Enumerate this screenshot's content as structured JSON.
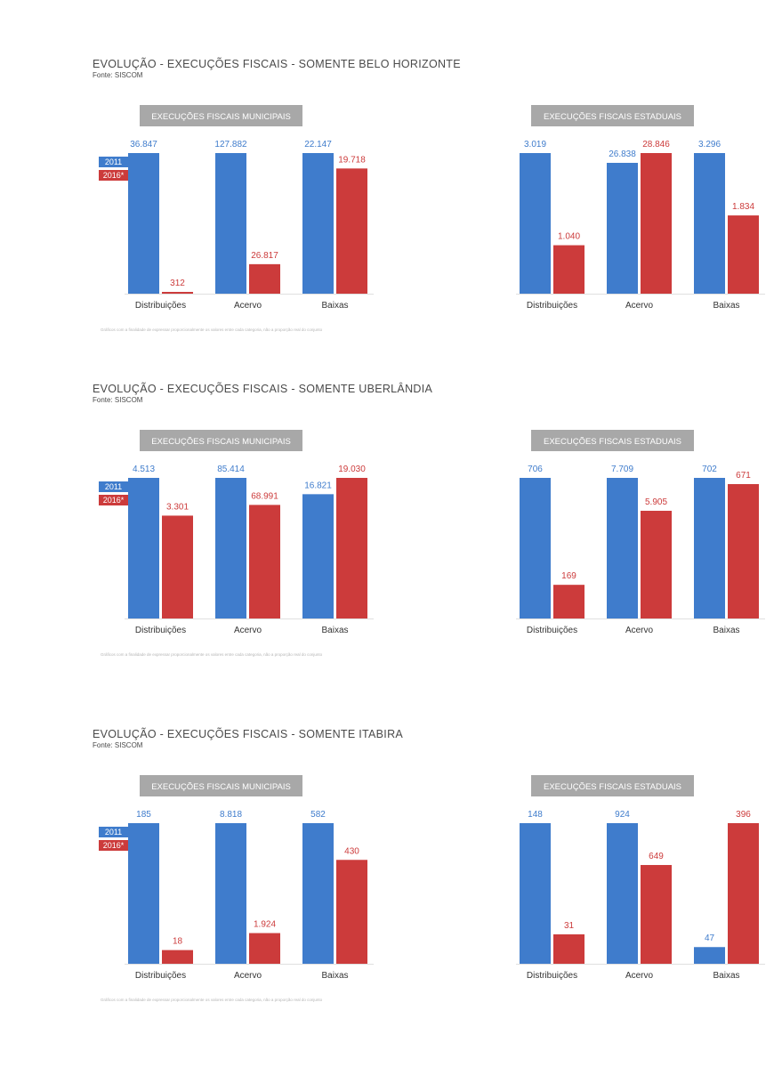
{
  "colors": {
    "y2011": "#3f7ccc",
    "y2016": "#cc3b3b",
    "header_bg": "#a8a8a8",
    "baseline": "#e0e0e0"
  },
  "legend": {
    "y2011": "2011",
    "y2016": "2016*"
  },
  "sections": [
    {
      "title": "EVOLUÇÃO - EXECUÇÕES FISCAIS - SOMENTE BELO HORIZONTE",
      "source": "Fonte: SISCOM",
      "note": "Gráficos com a finalidade de expressar proporcionalmente os valores entre cada categoria, não a proporção real do conjunto"
    },
    {
      "title": "EVOLUÇÃO - EXECUÇÕES FISCAIS - SOMENTE UBERLÂNDIA",
      "source": "Fonte: SISCOM",
      "note": "Gráficos com a finalidade de expressar proporcionalmente os valores entre cada categoria, não a proporção real do conjunto"
    },
    {
      "title": "EVOLUÇÃO - EXECUÇÕES FISCAIS - SOMENTE ITABIRA",
      "source": "Fonte: SISCOM",
      "note": "Gráficos com a finalidade de expressar proporcionalmente os valores entre cada categoria, não a proporção real do conjunto"
    }
  ],
  "chart_data": [
    {
      "type": "bar",
      "title": "EXECUÇÕES FISCAIS MUNICIPAIS",
      "categories": [
        "Distribuições",
        "Acervo",
        "Baixas"
      ],
      "series": [
        {
          "name": "2011",
          "values": [
            36847,
            127882,
            22147
          ],
          "labels": [
            "36.847",
            "127.882",
            "22.147"
          ]
        },
        {
          "name": "2016*",
          "values": [
            312,
            26817,
            19718
          ],
          "labels": [
            "312",
            "26.817",
            "19.718"
          ]
        }
      ],
      "scaling": "independent-per-category"
    },
    {
      "type": "bar",
      "title": "EXECUÇÕES FISCAIS ESTADUAIS",
      "categories": [
        "Distribuições",
        "Acervo",
        "Baixas"
      ],
      "series": [
        {
          "name": "2011",
          "values": [
            3019,
            26838,
            3296
          ],
          "labels": [
            "3.019",
            "26.838",
            "3.296"
          ]
        },
        {
          "name": "2016*",
          "values": [
            1040,
            28846,
            1834
          ],
          "labels": [
            "1.040",
            "28.846",
            "1.834"
          ]
        }
      ],
      "scaling": "independent-per-category"
    },
    {
      "type": "bar",
      "title": "EXECUÇÕES FISCAIS MUNICIPAIS",
      "categories": [
        "Distribuições",
        "Acervo",
        "Baixas"
      ],
      "series": [
        {
          "name": "2011",
          "values": [
            4513,
            85414,
            16821
          ],
          "labels": [
            "4.513",
            "85.414",
            "16.821"
          ]
        },
        {
          "name": "2016*",
          "values": [
            3301,
            68991,
            19030
          ],
          "labels": [
            "3.301",
            "68.991",
            "19.030"
          ]
        }
      ],
      "scaling": "independent-per-category"
    },
    {
      "type": "bar",
      "title": "EXECUÇÕES FISCAIS ESTADUAIS",
      "categories": [
        "Distribuições",
        "Acervo",
        "Baixas"
      ],
      "series": [
        {
          "name": "2011",
          "values": [
            706,
            7709,
            702
          ],
          "labels": [
            "706",
            "7.709",
            "702"
          ]
        },
        {
          "name": "2016*",
          "values": [
            169,
            5905,
            671
          ],
          "labels": [
            "169",
            "5.905",
            "671"
          ]
        }
      ],
      "scaling": "independent-per-category"
    },
    {
      "type": "bar",
      "title": "EXECUÇÕES FISCAIS MUNICIPAIS",
      "categories": [
        "Distribuições",
        "Acervo",
        "Baixas"
      ],
      "series": [
        {
          "name": "2011",
          "values": [
            185,
            8818,
            582
          ],
          "labels": [
            "185",
            "8.818",
            "582"
          ]
        },
        {
          "name": "2016*",
          "values": [
            18,
            1924,
            430
          ],
          "labels": [
            "18",
            "1.924",
            "430"
          ]
        }
      ],
      "scaling": "independent-per-category"
    },
    {
      "type": "bar",
      "title": "EXECUÇÕES FISCAIS ESTADUAIS",
      "categories": [
        "Distribuições",
        "Acervo",
        "Baixas"
      ],
      "series": [
        {
          "name": "2011",
          "values": [
            148,
            924,
            47
          ],
          "labels": [
            "148",
            "924",
            "47"
          ]
        },
        {
          "name": "2016*",
          "values": [
            31,
            649,
            396
          ],
          "labels": [
            "31",
            "649",
            "396"
          ]
        }
      ],
      "scaling": "independent-per-category"
    }
  ]
}
